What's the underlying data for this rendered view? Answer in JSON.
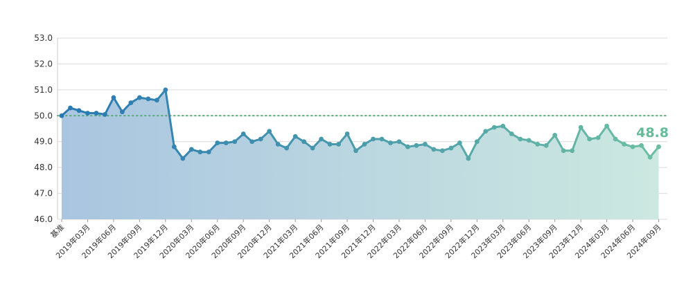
{
  "chart_data": {
    "type": "line",
    "title": "",
    "xlabel": "",
    "ylabel": "",
    "ylim": [
      46.0,
      53.0
    ],
    "yticks": [
      "46.0",
      "47.0",
      "48.0",
      "49.0",
      "50.0",
      "51.0",
      "52.0",
      "53.0"
    ],
    "grid": true,
    "reference_line": {
      "value": 50.0,
      "style": "dotted"
    },
    "x": [
      "基准",
      "2019-01",
      "2019-02",
      "2019-03",
      "2019-04",
      "2019-05",
      "2019-06",
      "2019-07",
      "2019-08",
      "2019-09",
      "2019-10",
      "2019-11",
      "2019-12",
      "2020-01",
      "2020-02",
      "2020-03",
      "2020-04",
      "2020-05",
      "2020-06",
      "2020-07",
      "2020-08",
      "2020-09",
      "2020-10",
      "2020-11",
      "2020-12",
      "2021-01",
      "2021-02",
      "2021-03",
      "2021-04",
      "2021-05",
      "2021-06",
      "2021-07",
      "2021-08",
      "2021-09",
      "2021-10",
      "2021-11",
      "2021-12",
      "2022-01",
      "2022-02",
      "2022-03",
      "2022-04",
      "2022-05",
      "2022-06",
      "2022-07",
      "2022-08",
      "2022-09",
      "2022-10",
      "2022-11",
      "2022-12",
      "2023-01",
      "2023-02",
      "2023-03",
      "2023-04",
      "2023-05",
      "2023-06",
      "2023-07",
      "2023-08",
      "2023-09",
      "2023-10",
      "2023-11",
      "2023-12",
      "2024-01",
      "2024-02",
      "2024-03",
      "2024-04",
      "2024-05",
      "2024-06",
      "2024-07",
      "2024-08",
      "2024-09"
    ],
    "xtick_labels": [
      "基准",
      "2019年03月",
      "2019年06月",
      "2019年09月",
      "2019年12月",
      "2020年03月",
      "2020年06月",
      "2020年09月",
      "2020年12月",
      "2021年03月",
      "2021年06月",
      "2021年09月",
      "2021年12月",
      "2022年03月",
      "2022年06月",
      "2022年09月",
      "2022年12月",
      "2023年03月",
      "2023年06月",
      "2023年09月",
      "2023年12月",
      "2024年03月",
      "2024年06月",
      "2024年09月"
    ],
    "xtick_indices": [
      0,
      3,
      6,
      9,
      12,
      15,
      18,
      21,
      24,
      27,
      30,
      33,
      36,
      39,
      42,
      45,
      48,
      51,
      54,
      57,
      60,
      63,
      66,
      69
    ],
    "series": [
      {
        "values": [
          50.0,
          50.3,
          50.2,
          50.1,
          50.1,
          50.05,
          50.7,
          50.15,
          50.5,
          50.7,
          50.65,
          50.6,
          51.0,
          48.8,
          48.35,
          48.7,
          48.6,
          48.6,
          48.95,
          48.95,
          49.0,
          49.3,
          49.0,
          49.1,
          49.4,
          48.9,
          48.75,
          49.2,
          49.0,
          48.75,
          49.1,
          48.9,
          48.9,
          49.3,
          48.65,
          48.9,
          49.1,
          49.1,
          48.95,
          49.0,
          48.8,
          48.85,
          48.9,
          48.7,
          48.65,
          48.75,
          48.95,
          48.35,
          49.0,
          49.4,
          49.55,
          49.6,
          49.3,
          49.1,
          49.05,
          48.9,
          48.85,
          49.25,
          48.65,
          48.65,
          49.55,
          49.1,
          49.15,
          49.6,
          49.1,
          48.9,
          48.8,
          48.85,
          48.4,
          48.8
        ]
      }
    ],
    "last_value_label": "48.8",
    "colors": {
      "line_start": "#2878b4",
      "line_end": "#6cbfa3",
      "area_start": "#a9c5e0",
      "area_end": "#cce8e0",
      "reference": "#55aa77",
      "last_label": "#66bb99",
      "grid": "#d9d9d9"
    }
  }
}
